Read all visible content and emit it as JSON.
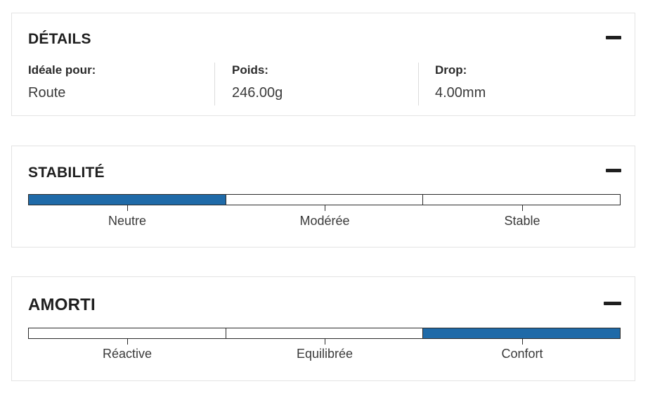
{
  "details": {
    "title": "DÉTAILS",
    "items": [
      {
        "label": "Idéale pour:",
        "value": "Route"
      },
      {
        "label": "Poids:",
        "value": "246.00g"
      },
      {
        "label": "Drop:",
        "value": "4.00mm"
      }
    ]
  },
  "stability": {
    "title": "STABILITÉ",
    "levels": [
      "Neutre",
      "Modérée",
      "Stable"
    ],
    "selected_index": 0
  },
  "cushioning": {
    "title": "AMORTI",
    "levels": [
      "Réactive",
      "Equilibrée",
      "Confort"
    ],
    "selected_index": 2
  },
  "colors": {
    "accent": "#1f6aa8"
  }
}
